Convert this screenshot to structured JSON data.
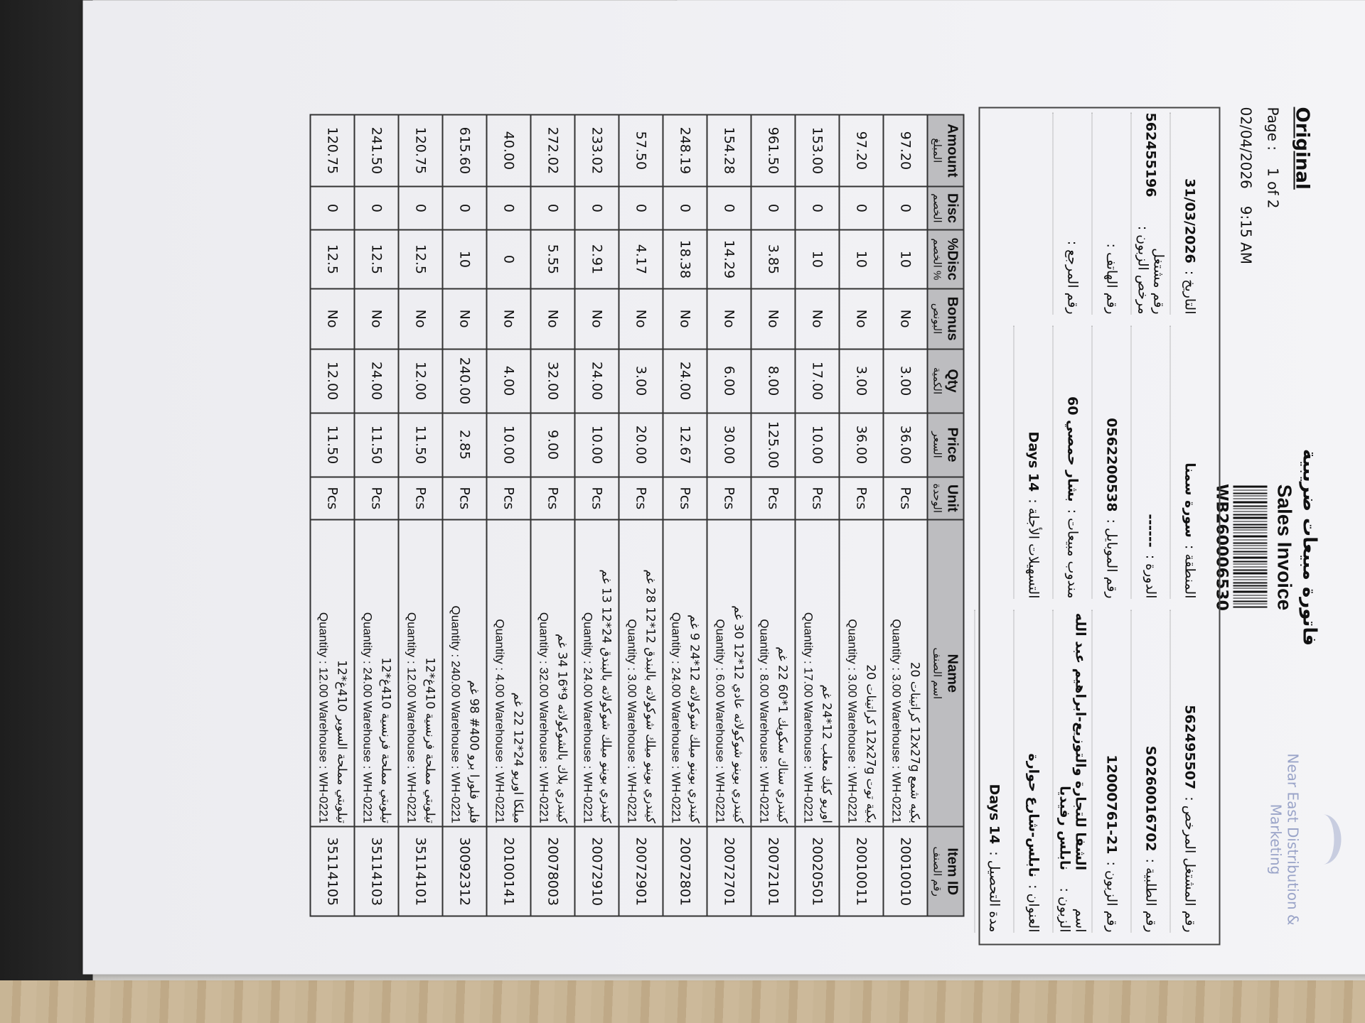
{
  "header": {
    "title_ar": "فاتورة مبيعات ضريبية",
    "title_en": "Sales Invoice",
    "invoice_no": "WB260006530",
    "company": "Near East Distribution & Marketing",
    "copy": "Original",
    "page_label": "Page :",
    "page": "1 of 2",
    "print_date": "02/04/2026",
    "print_time": "9:15 AM"
  },
  "fields": [
    [
      {
        "label": "رقم المشتغل المرخص :",
        "value": "562495507"
      },
      {
        "label": "رقم الطلبية :",
        "value": "SO260016702"
      },
      {
        "label": "رقم الزبون :",
        "value": "12000761-21"
      },
      {
        "label": "اسم الزبون :",
        "value": "الشفا للتجارة والتوزيع-ابراهيم عبد الله نابلس رفيديا"
      },
      {
        "label": "العنوان :",
        "value": "نابلس-شارع حوارة"
      },
      {
        "label": "مدة التحصيل :",
        "value": "14 Days"
      }
    ],
    [
      {
        "label": "المنطقة :",
        "value": "سورة سمنا"
      },
      {
        "label": "الدورة :",
        "value": "------"
      },
      {
        "label": "رقم الموبايل :",
        "value": "0562200538"
      },
      {
        "label": "مندوب مبيعات :",
        "value": "بشار حمصي 60"
      },
      {
        "label": "التسهيلات الأجلة :",
        "value": "14 Days"
      }
    ],
    [
      {
        "label": "التاريخ :",
        "value": "31/03/2026"
      },
      {
        "label": "رقم مشتغل مرخص الزبون :",
        "value": "562455196"
      },
      {
        "label": "رقم الهاتف :"
      },
      {
        "label": "رقم المرجع :"
      }
    ]
  ],
  "table": {
    "columns": [
      {
        "en": "Item ID",
        "ar": "رقم الصنف"
      },
      {
        "en": "Name",
        "ar": "اسم الصنف"
      },
      {
        "en": "Unit",
        "ar": "الوحدة"
      },
      {
        "en": "Price",
        "ar": "السعر"
      },
      {
        "en": "Qty",
        "ar": "الكمية"
      },
      {
        "en": "Bonus",
        "ar": "البونص"
      },
      {
        "en": "Disc%",
        "ar": "% الخصم"
      },
      {
        "en": "Disc",
        "ar": "الخصم"
      },
      {
        "en": "Amount",
        "ar": "المبلغ"
      }
    ],
    "rows": [
      [
        "20010010",
        {
          "name": "بكيه شمع 12x27g كراتينات 20",
          "detail": "Quantity : 3.00 Warehouse : WH-0221"
        },
        "Pcs",
        "36.00",
        "3.00",
        "No",
        "10",
        "0",
        "97.20"
      ],
      [
        "20010011",
        {
          "name": "بكية توت 12x27g كراتينات 20",
          "detail": "Quantity : 3.00 Warehouse : WH-0221"
        },
        "Pcs",
        "36.00",
        "3.00",
        "No",
        "10",
        "0",
        "97.20"
      ],
      [
        "20020501",
        {
          "name": "اوريو كيك معلب 12*24 غم",
          "detail": "Quantity : 17.00 Warehouse : WH-0221"
        },
        "Pcs",
        "10.00",
        "17.00",
        "No",
        "10",
        "0",
        "153.00"
      ],
      [
        "20072101",
        {
          "name": "كيندري سناك سكويك 1*60 22 غم",
          "detail": "Quantity : 8.00 Warehouse : WH-0221"
        },
        "Pcs",
        "125.00",
        "8.00",
        "No",
        "3.85",
        "0",
        "961.50"
      ],
      [
        "20072701",
        {
          "name": "كيندري بوينو شوكولاته عادي 12*12 30 غم",
          "detail": "Quantity : 6.00 Warehouse : WH-0221"
        },
        "Pcs",
        "30.00",
        "6.00",
        "No",
        "14.29",
        "0",
        "154.28"
      ],
      [
        "20072801",
        {
          "name": "كيندري بوينو ميلك شوكولاته 12*24 9 غم",
          "detail": "Quantity : 24.00 Warehouse : WH-0221"
        },
        "Pcs",
        "12.67",
        "24.00",
        "No",
        "18.38",
        "0",
        "248.19"
      ],
      [
        "20072901",
        {
          "name": "كيندري بوينو ميلك شوكولاته بالبندق 12*12 28 غم",
          "detail": "Quantity : 3.00 Warehouse : WH-0221"
        },
        "Pcs",
        "20.00",
        "3.00",
        "No",
        "4.17",
        "0",
        "57.50"
      ],
      [
        "20072910",
        {
          "name": "كيندري بوينو ميلك شوكولاته بالبندق 24*12 13 غم",
          "detail": "Quantity : 24.00 Warehouse : WH-0221"
        },
        "Pcs",
        "10.00",
        "24.00",
        "No",
        "2.91",
        "0",
        "233.02"
      ],
      [
        "20078003",
        {
          "name": "كيندري بلاك بالشوكولاته 9*16 34 غم",
          "detail": "Quantity : 32.00 Warehouse : WH-0221"
        },
        "Pcs",
        "9.00",
        "32.00",
        "No",
        "5.55",
        "0",
        "272.02"
      ],
      [
        "20100141",
        {
          "name": "ميلكا اوريو 24*12 22 غم",
          "detail": "Quantity : 4.00 Warehouse : WH-0221"
        },
        "Pcs",
        "10.00",
        "4.00",
        "No",
        "0",
        "0",
        "40.00"
      ],
      [
        "30092312",
        {
          "name": "فلير فلورا برو 400# 98 غم",
          "detail": "Quantity : 240.00 Warehouse : WH-0221"
        },
        "Pcs",
        "2.85",
        "240.00",
        "No",
        "10",
        "0",
        "615.60"
      ],
      [
        "35114101",
        {
          "name": "تيلوبتي مملحة فرنسية 410غ*12",
          "detail": "Quantity : 12.00 Warehouse : WH-0221"
        },
        "Pcs",
        "11.50",
        "12.00",
        "No",
        "12.5",
        "0",
        "120.75"
      ],
      [
        "35114103",
        {
          "name": "تيلوبتي مملحة فرنسية 410غ*12",
          "detail": "Quantity : 24.00 Warehouse : WH-0221"
        },
        "Pcs",
        "11.50",
        "24.00",
        "No",
        "12.5",
        "0",
        "241.50"
      ],
      [
        "35114105",
        {
          "name": "تيلوبتي مملحة السوبر 410غ*12",
          "detail": "Quantity : 12.00 Warehouse : WH-0221"
        },
        "Pcs",
        "11.50",
        "12.00",
        "No",
        "12.5",
        "0",
        "120.75"
      ]
    ]
  }
}
